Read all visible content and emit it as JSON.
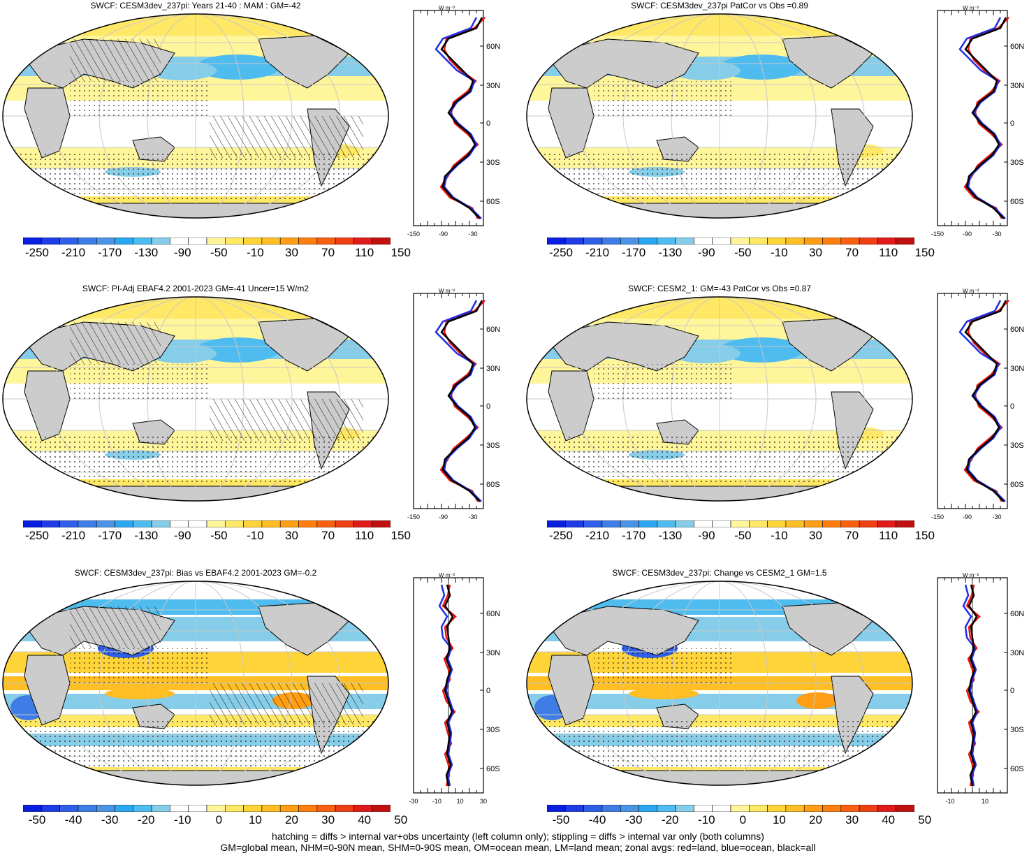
{
  "panels": [
    {
      "title": "SWCF: CESM3dev_237pi: Years 21-40 : MAM : GM=-42",
      "colorbar": [
        "-250",
        "-210",
        "-170",
        "-130",
        "-90",
        "-50",
        "-10",
        "30",
        "70",
        "110",
        "150"
      ],
      "colorbar_kind": "abs",
      "zonal_xticks": [
        "-150",
        "-90",
        "-30"
      ],
      "zonal_unit": "W m⁻²",
      "zonal_lat": [
        "60N",
        "30N",
        "0",
        "30S",
        "60S"
      ],
      "hatched": true
    },
    {
      "title": "SWCF: CESM3dev_237pi PatCor vs Obs =0.89",
      "colorbar": [
        "-250",
        "-210",
        "-170",
        "-130",
        "-90",
        "-50",
        "-10",
        "30",
        "70",
        "110",
        "150"
      ],
      "colorbar_kind": "abs",
      "zonal_xticks": [
        "-150",
        "-90",
        "-30"
      ],
      "zonal_unit": "W m⁻²",
      "zonal_lat": [
        "60N",
        "30N",
        "0",
        "30S",
        "60S"
      ],
      "hatched": false
    },
    {
      "title": "SWCF: PI-Adj EBAF4.2 2001-2023 GM=-41 Uncer=15 W/m2",
      "colorbar": [
        "-250",
        "-210",
        "-170",
        "-130",
        "-90",
        "-50",
        "-10",
        "30",
        "70",
        "110",
        "150"
      ],
      "colorbar_kind": "abs",
      "zonal_xticks": [
        "-150",
        "-90",
        "-30"
      ],
      "zonal_unit": "W m⁻²",
      "zonal_lat": [
        "60N",
        "30N",
        "0",
        "30S",
        "60S"
      ],
      "hatched": true
    },
    {
      "title": "SWCF: CESM2_1: GM=-43 PatCor vs Obs =0.87",
      "colorbar": [
        "-250",
        "-210",
        "-170",
        "-130",
        "-90",
        "-50",
        "-10",
        "30",
        "70",
        "110",
        "150"
      ],
      "colorbar_kind": "abs",
      "zonal_xticks": [
        "-150",
        "-90",
        "-30"
      ],
      "zonal_unit": "W m⁻²",
      "zonal_lat": [
        "60N",
        "30N",
        "0",
        "30S",
        "60S"
      ],
      "hatched": false
    },
    {
      "title": "SWCF: CESM3dev_237pi: Bias vs EBAF4.2 2001-2023 GM=-0.2",
      "colorbar": [
        "-50",
        "-40",
        "-30",
        "-20",
        "-10",
        "0",
        "10",
        "20",
        "30",
        "40",
        "50"
      ],
      "colorbar_kind": "diff",
      "zonal_xticks": [
        "-30",
        "-10",
        "10",
        "30"
      ],
      "zonal_unit": "W m⁻²",
      "zonal_lat": [
        "60N",
        "30N",
        "0",
        "30S",
        "60S"
      ],
      "hatched": true
    },
    {
      "title": "SWCF: CESM3dev_237pi: Change vs CESM2_1 GM=1.5",
      "colorbar": [
        "-50",
        "-40",
        "-30",
        "-20",
        "-10",
        "0",
        "10",
        "20",
        "30",
        "40",
        "50"
      ],
      "colorbar_kind": "diff",
      "zonal_xticks": [
        "-10",
        "10"
      ],
      "zonal_unit": "W m⁻²",
      "zonal_lat": [
        "60N",
        "30N",
        "0",
        "30S",
        "60S"
      ],
      "hatched": false
    }
  ],
  "colors": {
    "abs": [
      "#0a1ee0",
      "#1e3ce6",
      "#2f5ee8",
      "#3f7de6",
      "#4a94e6",
      "#2aa7f0",
      "#4fbcf0",
      "#85cde8",
      "#ffffff",
      "#ffffff",
      "#fff59a",
      "#ffe866",
      "#ffd438",
      "#ffbe24",
      "#ff9e14",
      "#ff7e0e",
      "#f86010",
      "#ee3e14",
      "#e01a1a",
      "#c01010"
    ],
    "diff": [
      "#0a1ee0",
      "#1e3ce6",
      "#2f5ee8",
      "#3f7de6",
      "#4a94e6",
      "#2aa7f0",
      "#4fbcf0",
      "#85cde8",
      "#ffffff",
      "#ffffff",
      "#fff59a",
      "#ffe866",
      "#ffd438",
      "#ffbe24",
      "#ff9e14",
      "#ff7e0e",
      "#f86010",
      "#ee3e14",
      "#e01a1a",
      "#c01010"
    ],
    "land": "#cccccc",
    "ocean_pos": "#ffe866",
    "ocean_neg": "#85cde8",
    "zonal_land": "#ee1111",
    "zonal_ocean": "#1f2fe0",
    "zonal_all": "#000000"
  },
  "footnote": {
    "line1": "hatching = diffs > internal var+obs uncertainty (left column only); stippling = diffs > internal var only (both columns)",
    "line2": "GM=global mean, NHM=0-90N mean, SHM=0-90S mean, OM=ocean mean, LM=land mean; zonal avgs: red=land, blue=ocean, black=all"
  }
}
